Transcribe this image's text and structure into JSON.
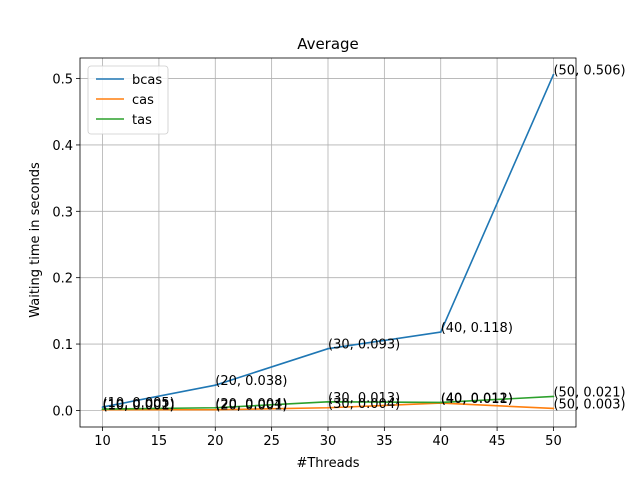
{
  "chart_data": {
    "type": "line",
    "title": "Average",
    "xlabel": "#Threads",
    "ylabel": "Waiting time in seconds",
    "x": [
      10,
      20,
      30,
      40,
      50
    ],
    "xlim": [
      8,
      52
    ],
    "ylim": [
      -0.025,
      0.531
    ],
    "xticks": [
      10,
      15,
      20,
      25,
      30,
      35,
      40,
      45,
      50
    ],
    "yticks": [
      0.0,
      0.1,
      0.2,
      0.3,
      0.4,
      0.5
    ],
    "xtick_labels": [
      "10",
      "15",
      "20",
      "25",
      "30",
      "35",
      "40",
      "45",
      "50"
    ],
    "ytick_labels": [
      "0.0",
      "0.1",
      "0.2",
      "0.3",
      "0.4",
      "0.5"
    ],
    "grid": true,
    "legend_position": "top-left",
    "series": [
      {
        "name": "bcas",
        "color": "#1f77b4",
        "values": [
          0.005,
          0.038,
          0.093,
          0.118,
          0.506
        ],
        "labels": [
          "(10, 0.005)",
          "(20, 0.038)",
          "(30, 0.093)",
          "(40, 0.118)",
          "(50, 0.506)"
        ]
      },
      {
        "name": "cas",
        "color": "#ff7f0e",
        "values": [
          0.001,
          0.001,
          0.004,
          0.011,
          0.003
        ],
        "labels": [
          "(10, 0.001)",
          "(20, 0.001)",
          "(30, 0.004)",
          "(40, 0.011)",
          "(50, 0.003)"
        ]
      },
      {
        "name": "tas",
        "color": "#2ca02c",
        "values": [
          0.002,
          0.004,
          0.013,
          0.012,
          0.021
        ],
        "labels": [
          "(10, 0.002)",
          "(20, 0.004)",
          "(30, 0.013)",
          "(40, 0.012)",
          "(50, 0.021)"
        ]
      }
    ]
  }
}
